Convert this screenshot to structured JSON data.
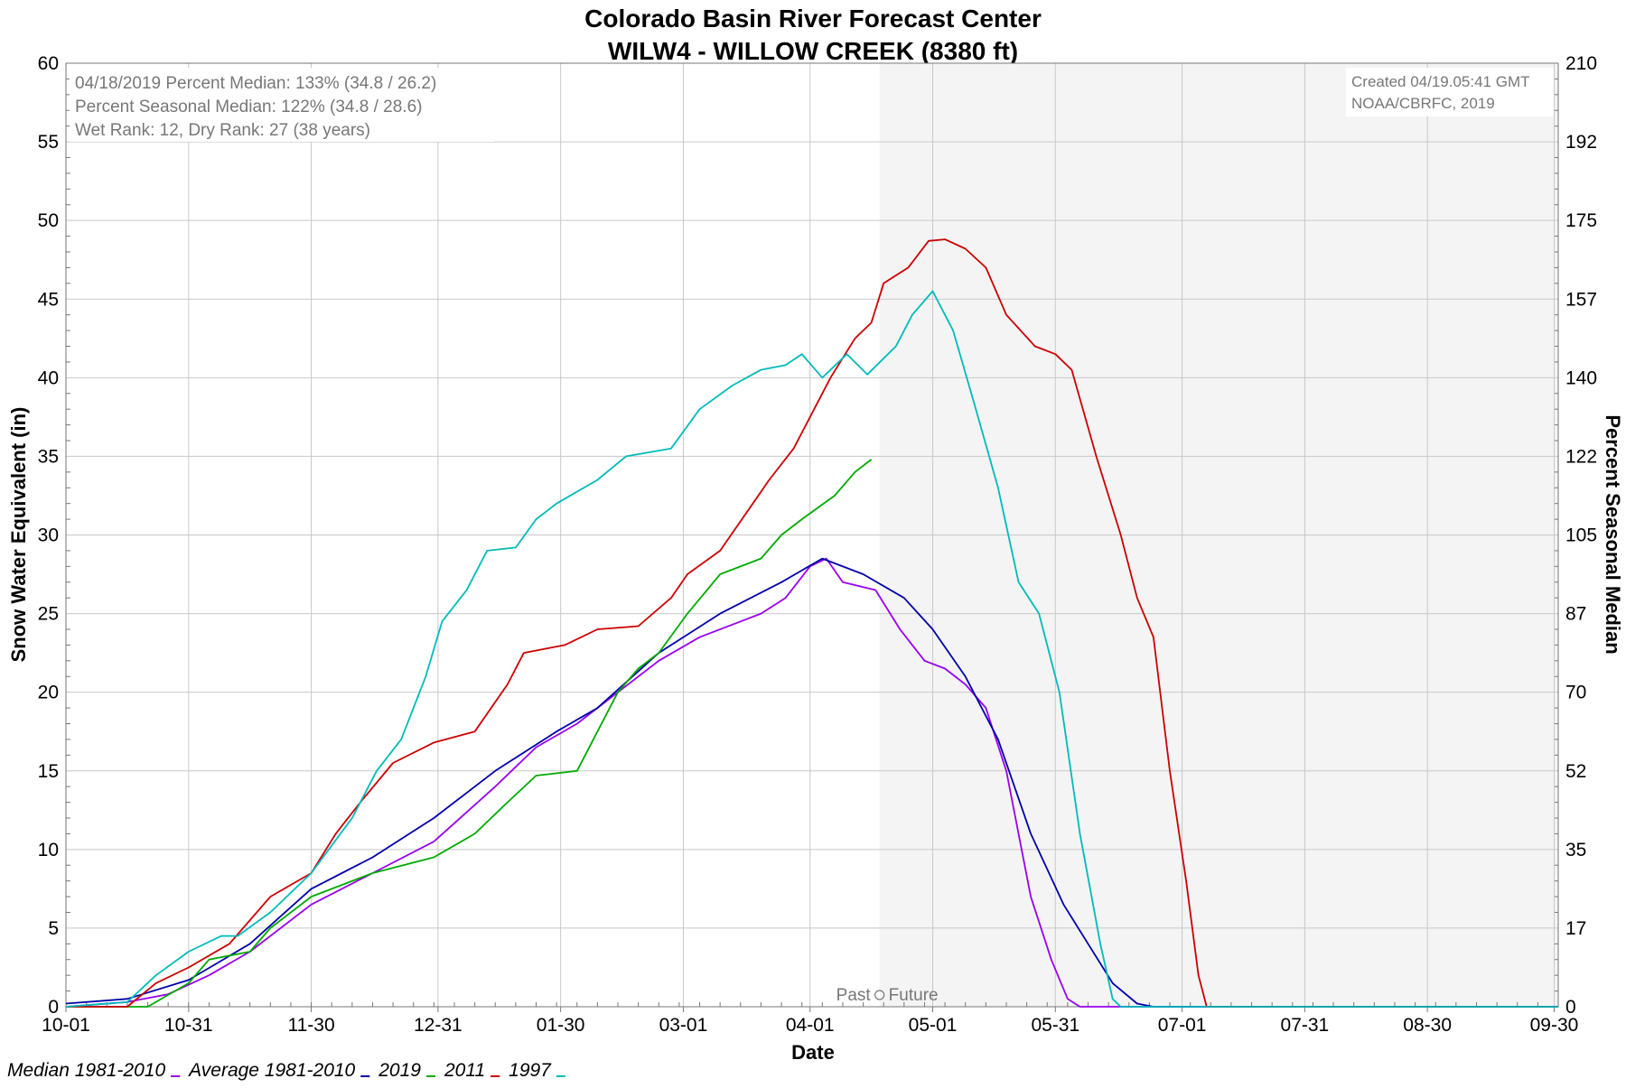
{
  "chart_data": {
    "type": "line",
    "title": "Colorado Basin River Forecast Center",
    "subtitle": "WILW4 - WILLOW CREEK (8380 ft)",
    "xlabel": "Date",
    "ylabel": "Snow Water Equivalent (in)",
    "ylabel_right": "Percent Seasonal Median",
    "xlim": [
      0,
      365
    ],
    "ylim": [
      0,
      60
    ],
    "y_ticks": [
      "0",
      "5",
      "10",
      "15",
      "20",
      "25",
      "30",
      "35",
      "40",
      "45",
      "50",
      "55",
      "60"
    ],
    "y_ticks_right": [
      "0",
      "17",
      "35",
      "52",
      "70",
      "87",
      "105",
      "122",
      "140",
      "157",
      "175",
      "192",
      "210"
    ],
    "x_ticks": [
      {
        "day": 0,
        "label": "10-01"
      },
      {
        "day": 30,
        "label": "10-31"
      },
      {
        "day": 60,
        "label": "11-30"
      },
      {
        "day": 91,
        "label": "12-31"
      },
      {
        "day": 121,
        "label": "01-30"
      },
      {
        "day": 151,
        "label": "03-01"
      },
      {
        "day": 182,
        "label": "04-01"
      },
      {
        "day": 212,
        "label": "05-01"
      },
      {
        "day": 242,
        "label": "05-31"
      },
      {
        "day": 273,
        "label": "07-01"
      },
      {
        "day": 303,
        "label": "07-31"
      },
      {
        "day": 333,
        "label": "08-30"
      },
      {
        "day": 364,
        "label": "09-30"
      }
    ],
    "grid": true,
    "forecast_start_day": 199,
    "past_future_label": {
      "past": "Past",
      "future": "Future"
    },
    "annotations_left": [
      "04/18/2019 Percent Median: 133% (34.8 / 26.2)",
      "Percent Seasonal Median: 122% (34.8 / 28.6)",
      "Wet Rank: 12, Dry Rank: 27  (38 years)"
    ],
    "annotations_right": [
      "Created 04/19.05:41 GMT",
      "NOAA/CBRFC, 2019"
    ],
    "legend": [
      {
        "label": "Median 1981-2010",
        "color": "#9900ee"
      },
      {
        "label": "Average 1981-2010",
        "color": "#0000aa"
      },
      {
        "label": "2019",
        "color": "#00aa00"
      },
      {
        "label": "2011",
        "color": "#cc0000"
      },
      {
        "label": "1997",
        "color": "#00bbbb"
      }
    ],
    "series": [
      {
        "name": "Median 1981-2010",
        "color": "#9900ee",
        "points": [
          [
            0,
            0
          ],
          [
            15,
            0.3
          ],
          [
            25,
            0.8
          ],
          [
            35,
            2
          ],
          [
            45,
            3.5
          ],
          [
            60,
            6.5
          ],
          [
            75,
            8.5
          ],
          [
            90,
            10.5
          ],
          [
            105,
            14
          ],
          [
            115,
            16.5
          ],
          [
            125,
            18
          ],
          [
            135,
            20
          ],
          [
            145,
            22
          ],
          [
            155,
            23.5
          ],
          [
            165,
            24.5
          ],
          [
            170,
            25
          ],
          [
            176,
            26
          ],
          [
            182,
            28
          ],
          [
            186,
            28.5
          ],
          [
            190,
            27
          ],
          [
            198,
            26.5
          ],
          [
            204,
            24
          ],
          [
            210,
            22
          ],
          [
            215,
            21.5
          ],
          [
            220,
            20.5
          ],
          [
            225,
            19
          ],
          [
            230,
            15
          ],
          [
            236,
            7
          ],
          [
            241,
            3
          ],
          [
            245,
            0.5
          ],
          [
            248,
            0
          ],
          [
            365,
            0
          ]
        ]
      },
      {
        "name": "Average 1981-2010",
        "color": "#0000aa",
        "points": [
          [
            0,
            0.2
          ],
          [
            15,
            0.5
          ],
          [
            30,
            1.7
          ],
          [
            45,
            4
          ],
          [
            60,
            7.5
          ],
          [
            75,
            9.5
          ],
          [
            90,
            12
          ],
          [
            105,
            15
          ],
          [
            120,
            17.5
          ],
          [
            130,
            19
          ],
          [
            145,
            22.5
          ],
          [
            160,
            25
          ],
          [
            175,
            27
          ],
          [
            185,
            28.5
          ],
          [
            195,
            27.5
          ],
          [
            205,
            26
          ],
          [
            212,
            24
          ],
          [
            220,
            21
          ],
          [
            228,
            17
          ],
          [
            236,
            11
          ],
          [
            244,
            6.5
          ],
          [
            250,
            4
          ],
          [
            256,
            1.5
          ],
          [
            262,
            0.2
          ],
          [
            266,
            0
          ],
          [
            365,
            0
          ]
        ]
      },
      {
        "name": "2019",
        "color": "#00aa00",
        "points": [
          [
            0,
            0
          ],
          [
            20,
            0
          ],
          [
            30,
            1.5
          ],
          [
            35,
            3
          ],
          [
            45,
            3.5
          ],
          [
            50,
            5
          ],
          [
            60,
            7
          ],
          [
            75,
            8.5
          ],
          [
            90,
            9.5
          ],
          [
            100,
            11
          ],
          [
            108,
            13
          ],
          [
            115,
            14.7
          ],
          [
            125,
            15
          ],
          [
            130,
            17.5
          ],
          [
            135,
            20
          ],
          [
            140,
            21.5
          ],
          [
            145,
            22.5
          ],
          [
            152,
            25
          ],
          [
            160,
            27.5
          ],
          [
            170,
            28.5
          ],
          [
            175,
            30
          ],
          [
            180,
            31
          ],
          [
            188,
            32.5
          ],
          [
            193,
            34
          ],
          [
            197,
            34.8
          ]
        ]
      },
      {
        "name": "2011",
        "color": "#cc0000",
        "points": [
          [
            0,
            0
          ],
          [
            15,
            0
          ],
          [
            22,
            1.5
          ],
          [
            30,
            2.5
          ],
          [
            40,
            4
          ],
          [
            50,
            7
          ],
          [
            60,
            8.5
          ],
          [
            66,
            11
          ],
          [
            72,
            13
          ],
          [
            80,
            15.5
          ],
          [
            90,
            16.8
          ],
          [
            100,
            17.5
          ],
          [
            108,
            20.5
          ],
          [
            112,
            22.5
          ],
          [
            122,
            23
          ],
          [
            130,
            24
          ],
          [
            140,
            24.2
          ],
          [
            148,
            26
          ],
          [
            152,
            27.5
          ],
          [
            160,
            29
          ],
          [
            168,
            32
          ],
          [
            172,
            33.5
          ],
          [
            178,
            35.5
          ],
          [
            182,
            37.5
          ],
          [
            187,
            40
          ],
          [
            193,
            42.5
          ],
          [
            197,
            43.5
          ],
          [
            200,
            46
          ],
          [
            206,
            47
          ],
          [
            211,
            48.7
          ],
          [
            215,
            48.8
          ],
          [
            220,
            48.2
          ],
          [
            225,
            47
          ],
          [
            230,
            44
          ],
          [
            237,
            42
          ],
          [
            242,
            41.5
          ],
          [
            246,
            40.5
          ],
          [
            252,
            35
          ],
          [
            258,
            30
          ],
          [
            262,
            26
          ],
          [
            266,
            23.5
          ],
          [
            270,
            15
          ],
          [
            274,
            8
          ],
          [
            277,
            2
          ],
          [
            279,
            0
          ],
          [
            365,
            0
          ]
        ]
      },
      {
        "name": "1997",
        "color": "#00bbbb",
        "points": [
          [
            0,
            0
          ],
          [
            15,
            0.3
          ],
          [
            22,
            2
          ],
          [
            30,
            3.5
          ],
          [
            38,
            4.5
          ],
          [
            42,
            4.5
          ],
          [
            50,
            6
          ],
          [
            60,
            8.5
          ],
          [
            70,
            12
          ],
          [
            76,
            15
          ],
          [
            82,
            17
          ],
          [
            88,
            21
          ],
          [
            92,
            24.5
          ],
          [
            98,
            26.5
          ],
          [
            103,
            29
          ],
          [
            110,
            29.2
          ],
          [
            115,
            31
          ],
          [
            120,
            32
          ],
          [
            130,
            33.5
          ],
          [
            137,
            35
          ],
          [
            148,
            35.5
          ],
          [
            155,
            38
          ],
          [
            163,
            39.5
          ],
          [
            170,
            40.5
          ],
          [
            176,
            40.8
          ],
          [
            180,
            41.5
          ],
          [
            185,
            40
          ],
          [
            191,
            41.5
          ],
          [
            196,
            40.2
          ],
          [
            203,
            42
          ],
          [
            207,
            44
          ],
          [
            212,
            45.5
          ],
          [
            217,
            43
          ],
          [
            222,
            38.5
          ],
          [
            228,
            33
          ],
          [
            233,
            27
          ],
          [
            238,
            25
          ],
          [
            243,
            20
          ],
          [
            248,
            11
          ],
          [
            253,
            4
          ],
          [
            256,
            0.5
          ],
          [
            258,
            0
          ],
          [
            365,
            0
          ]
        ]
      }
    ]
  }
}
